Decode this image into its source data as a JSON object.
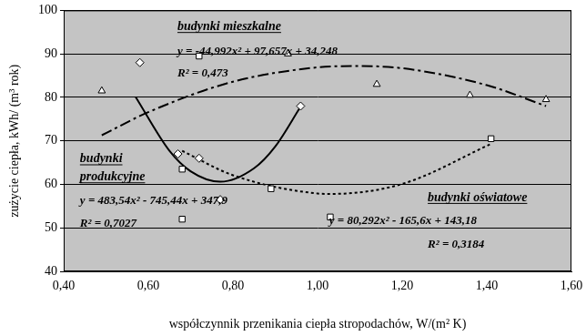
{
  "chart_data": {
    "type": "scatter",
    "x_label": "współczynnik przenikania ciepła stropodachów, W/(m² K)",
    "y_label": "zużycie ciepła, kWh/ (m³ rok)",
    "xlim": [
      0.4,
      1.6
    ],
    "ylim": [
      40,
      100
    ],
    "xticks": [
      {
        "value": 0.4,
        "label": "0,40"
      },
      {
        "value": 0.6,
        "label": "0,60"
      },
      {
        "value": 0.8,
        "label": "0,80"
      },
      {
        "value": 1.0,
        "label": "1,00"
      },
      {
        "value": 1.2,
        "label": "1,20"
      },
      {
        "value": 1.4,
        "label": "1,40"
      },
      {
        "value": 1.6,
        "label": "1,60"
      }
    ],
    "yticks": [
      40,
      50,
      60,
      70,
      80,
      90,
      100
    ],
    "grid": true,
    "series": [
      {
        "name": "budynki mieszkalne",
        "color": "#000000",
        "marker": "triangle",
        "line_style": "dashdot",
        "x": [
          0.49,
          0.93,
          1.14,
          1.36,
          1.54
        ],
        "values": [
          81.5,
          90,
          83,
          80.5,
          79.5
        ],
        "trend": {
          "x": [
            0.49,
            0.6,
            0.8,
            1.0,
            1.09,
            1.2,
            1.4,
            1.54
          ],
          "values": [
            71.3,
            76.6,
            83.6,
            86.9,
            87.2,
            86.7,
            82.8,
            78
          ]
        },
        "equation": "y = -44,992x² + 97,657x + 34,248",
        "r2": "R² = 0,473"
      },
      {
        "name": "budynki produkcyjne",
        "color": "#000000",
        "marker": "diamond",
        "line_style": "solid",
        "x": [
          0.58,
          0.67,
          0.72,
          0.77,
          0.96
        ],
        "values": [
          88,
          67,
          66,
          56.5,
          78
        ],
        "trend": {
          "x": [
            0.57,
            0.65,
            0.7,
            0.77,
            0.85,
            0.9,
            0.96
          ],
          "values": [
            80.1,
            67.7,
            63,
            60.6,
            63.7,
            68.7,
            77.9
          ]
        },
        "equation": "y = 483,54x² - 745,44x + 347,9",
        "r2": "R² = 0,7027"
      },
      {
        "name": "budynki oświatowe",
        "color": "#000000",
        "marker": "square",
        "line_style": "dotted",
        "x": [
          0.72,
          0.68,
          0.68,
          0.89,
          1.03,
          1.41
        ],
        "values": [
          89.5,
          63.5,
          52,
          59,
          52.5,
          70.5
        ],
        "trend": {
          "x": [
            0.68,
            0.8,
            1.0,
            1.03,
            1.2,
            1.41
          ],
          "values": [
            67.7,
            62.1,
            57.9,
            57.8,
            60.1,
            69.3
          ]
        },
        "equation": "y = 80,292x² - 165,6x + 143,18",
        "r2": "R² = 0,3184"
      }
    ]
  }
}
